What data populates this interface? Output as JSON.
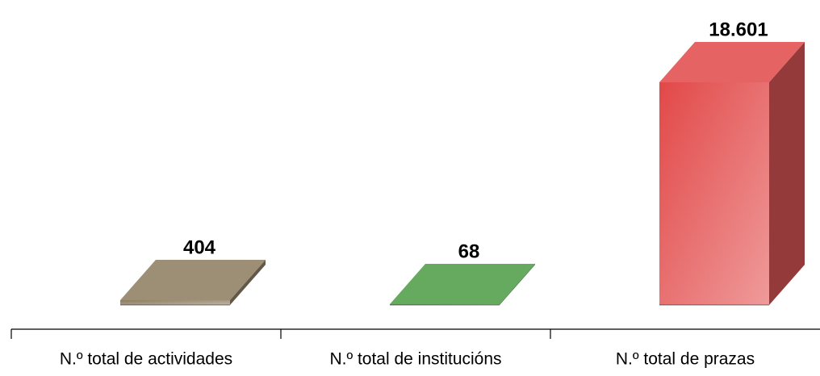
{
  "chart_data": {
    "type": "bar3d",
    "categories": [
      "N.º total de actividades",
      "N.º total de institucións",
      "N.º total de prazas"
    ],
    "values": [
      404,
      68,
      18601
    ],
    "value_labels": [
      "404",
      "68",
      "18.601"
    ],
    "colors": [
      "#8c7b5e",
      "#4a9c42",
      "#e24848"
    ]
  }
}
